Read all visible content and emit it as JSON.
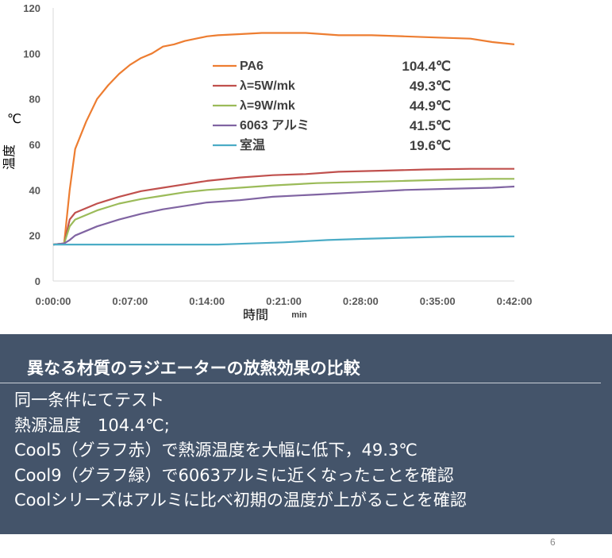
{
  "chart_data": {
    "type": "line",
    "xlabel": "時間",
    "xunit": "min",
    "ylabel": "温度 ℃",
    "ylim": [
      0,
      120
    ],
    "yticks": [
      0,
      20,
      40,
      60,
      80,
      100,
      120
    ],
    "xlim_minutes": [
      0,
      42
    ],
    "xticks": [
      "0:00:00",
      "0:07:00",
      "0:14:00",
      "0:21:00",
      "0:28:00",
      "0:35:00",
      "0:42:00"
    ],
    "grid": false,
    "legend_position": "inside-top-center",
    "series": [
      {
        "name": "PA6",
        "legend_value": "104.4℃",
        "color": "#ed7d31",
        "points": [
          [
            0,
            16
          ],
          [
            1,
            16.5
          ],
          [
            1.5,
            40
          ],
          [
            2,
            58
          ],
          [
            3,
            70
          ],
          [
            4,
            80
          ],
          [
            5,
            86
          ],
          [
            6,
            91
          ],
          [
            7,
            95
          ],
          [
            8,
            98
          ],
          [
            9,
            100
          ],
          [
            10,
            103
          ],
          [
            11,
            104
          ],
          [
            12,
            105.5
          ],
          [
            13,
            106.5
          ],
          [
            14,
            107.5
          ],
          [
            15,
            108
          ],
          [
            17,
            108.5
          ],
          [
            19,
            109
          ],
          [
            21,
            109
          ],
          [
            23,
            109
          ],
          [
            26,
            108
          ],
          [
            29,
            108
          ],
          [
            32,
            107.5
          ],
          [
            35,
            107
          ],
          [
            38,
            106.5
          ],
          [
            40,
            105
          ],
          [
            42,
            104
          ]
        ]
      },
      {
        "name": "λ=5W/mk",
        "legend_value": "49.3℃",
        "color": "#c0504d",
        "points": [
          [
            0,
            16
          ],
          [
            1,
            16.5
          ],
          [
            1.5,
            27
          ],
          [
            2,
            30
          ],
          [
            4,
            34
          ],
          [
            6,
            37
          ],
          [
            8,
            39.5
          ],
          [
            10,
            41
          ],
          [
            12,
            42.5
          ],
          [
            14,
            44
          ],
          [
            17,
            45.5
          ],
          [
            20,
            46.5
          ],
          [
            23,
            47
          ],
          [
            26,
            48
          ],
          [
            30,
            48.5
          ],
          [
            34,
            49
          ],
          [
            38,
            49.3
          ],
          [
            42,
            49.3
          ]
        ]
      },
      {
        "name": "λ=9W/mk",
        "legend_value": "44.9℃",
        "color": "#9bbb59",
        "points": [
          [
            0,
            16
          ],
          [
            1,
            16.5
          ],
          [
            1.5,
            24
          ],
          [
            2,
            27
          ],
          [
            4,
            31
          ],
          [
            6,
            34
          ],
          [
            8,
            36
          ],
          [
            10,
            37.5
          ],
          [
            12,
            39
          ],
          [
            14,
            40
          ],
          [
            17,
            41
          ],
          [
            20,
            42
          ],
          [
            24,
            43
          ],
          [
            28,
            43.5
          ],
          [
            32,
            44
          ],
          [
            36,
            44.5
          ],
          [
            40,
            44.9
          ],
          [
            42,
            44.9
          ]
        ]
      },
      {
        "name": "6063 アルミ",
        "legend_value": "41.5℃",
        "color": "#8064a2",
        "points": [
          [
            0,
            16
          ],
          [
            1,
            16.5
          ],
          [
            1.5,
            18
          ],
          [
            2,
            20
          ],
          [
            4,
            24
          ],
          [
            6,
            27
          ],
          [
            8,
            29.5
          ],
          [
            10,
            31.5
          ],
          [
            12,
            33
          ],
          [
            14,
            34.5
          ],
          [
            17,
            35.5
          ],
          [
            20,
            37
          ],
          [
            24,
            38
          ],
          [
            28,
            39
          ],
          [
            32,
            40
          ],
          [
            36,
            40.5
          ],
          [
            40,
            41
          ],
          [
            42,
            41.5
          ]
        ]
      },
      {
        "name": "室温",
        "legend_value": "19.6℃",
        "color": "#4bacc6",
        "points": [
          [
            0,
            16
          ],
          [
            3,
            16
          ],
          [
            7,
            16
          ],
          [
            12,
            16
          ],
          [
            15,
            16
          ],
          [
            18,
            16.5
          ],
          [
            21,
            17
          ],
          [
            25,
            18
          ],
          [
            28,
            18.5
          ],
          [
            32,
            19
          ],
          [
            36,
            19.5
          ],
          [
            42,
            19.6
          ]
        ]
      }
    ]
  },
  "panel": {
    "title": "異なる材質のラジエーターの放熱効果の比較",
    "lines": [
      "同一条件にてテスト",
      "熱源温度　104.4℃;",
      "Cool5（グラフ赤）で熱源温度を大幅に低下，49.3℃",
      "Cool9（グラフ緑）で6063アルミに近くなったことを確認",
      "Coolシリーズはアルミに比べ初期の温度が上がることを確認"
    ]
  },
  "page_number": "6"
}
